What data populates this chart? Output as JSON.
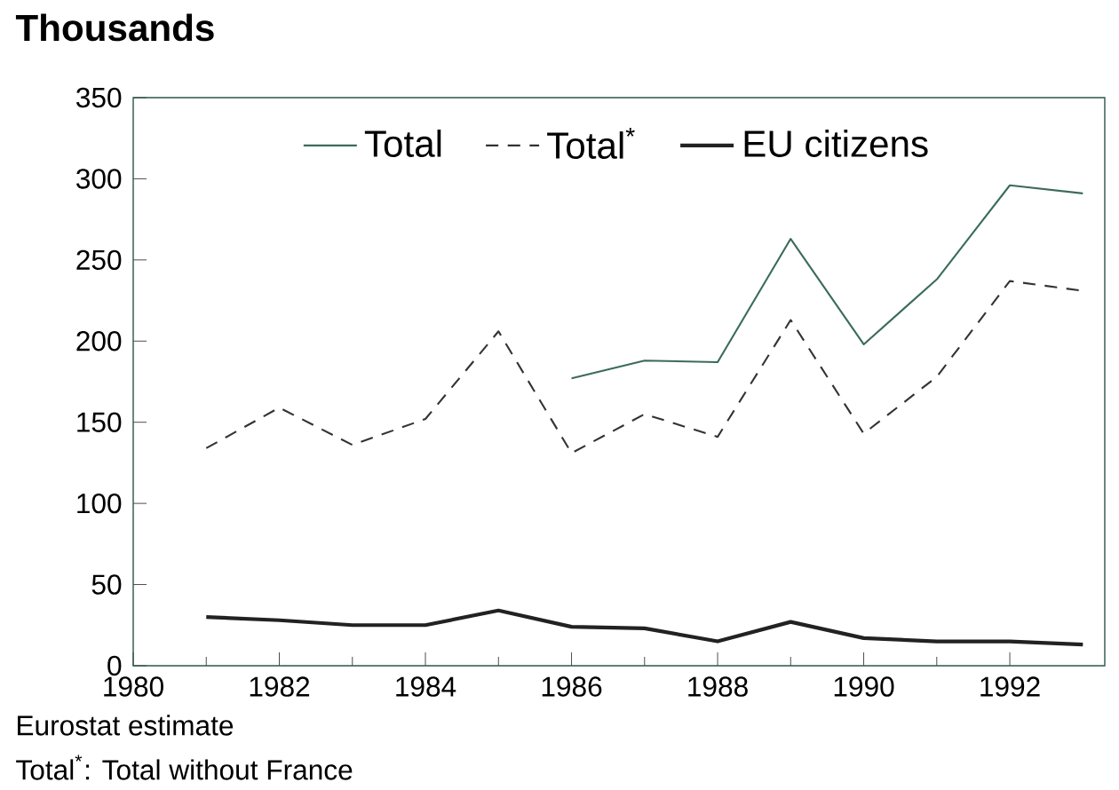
{
  "chart_data": {
    "type": "line",
    "title": "Thousands",
    "annotations": [
      "Eurostat estimate",
      "Total$^{*}$: Total without France"
    ],
    "x": [
      1981,
      1982,
      1983,
      1984,
      1985,
      1986,
      1987,
      1988,
      1989,
      1990,
      1991,
      1992,
      1993
    ],
    "series": [
      {
        "name": "Total",
        "color": "#3b6b5c",
        "line_style": "solid",
        "values": [
          null,
          null,
          null,
          null,
          null,
          177,
          188,
          187,
          263,
          198,
          238,
          296,
          291
        ]
      },
      {
        "name": "Total$^{*}$",
        "color": "#333333",
        "line_style": "dashed",
        "values": [
          134,
          159,
          136,
          152,
          206,
          131,
          155,
          141,
          213,
          143,
          178,
          237,
          231
        ]
      },
      {
        "name": "EU citizens",
        "color": "#222222",
        "line_style": "solid",
        "values": [
          30,
          28,
          25,
          25,
          34,
          24,
          23,
          15,
          27,
          17,
          15,
          15,
          13
        ]
      }
    ],
    "xlim": [
      1980,
      1993.3
    ],
    "xticks": [
      1980,
      1982,
      1984,
      1986,
      1988,
      1990,
      1992
    ],
    "ylim": [
      0,
      350
    ],
    "yticks": [
      0,
      50,
      100,
      150,
      200,
      250,
      300,
      350
    ],
    "grid": false,
    "legend": "top",
    "marker": "none"
  }
}
